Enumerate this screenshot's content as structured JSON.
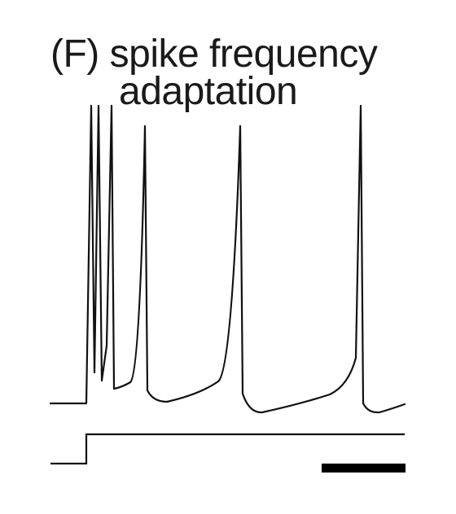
{
  "figure": {
    "panel_label": "(F)",
    "title_line1": "spike frequency",
    "title_line2": "adaptation"
  },
  "colors": {
    "trace": "#111111",
    "scale_bar": "#000000",
    "background": "#ffffff"
  }
}
